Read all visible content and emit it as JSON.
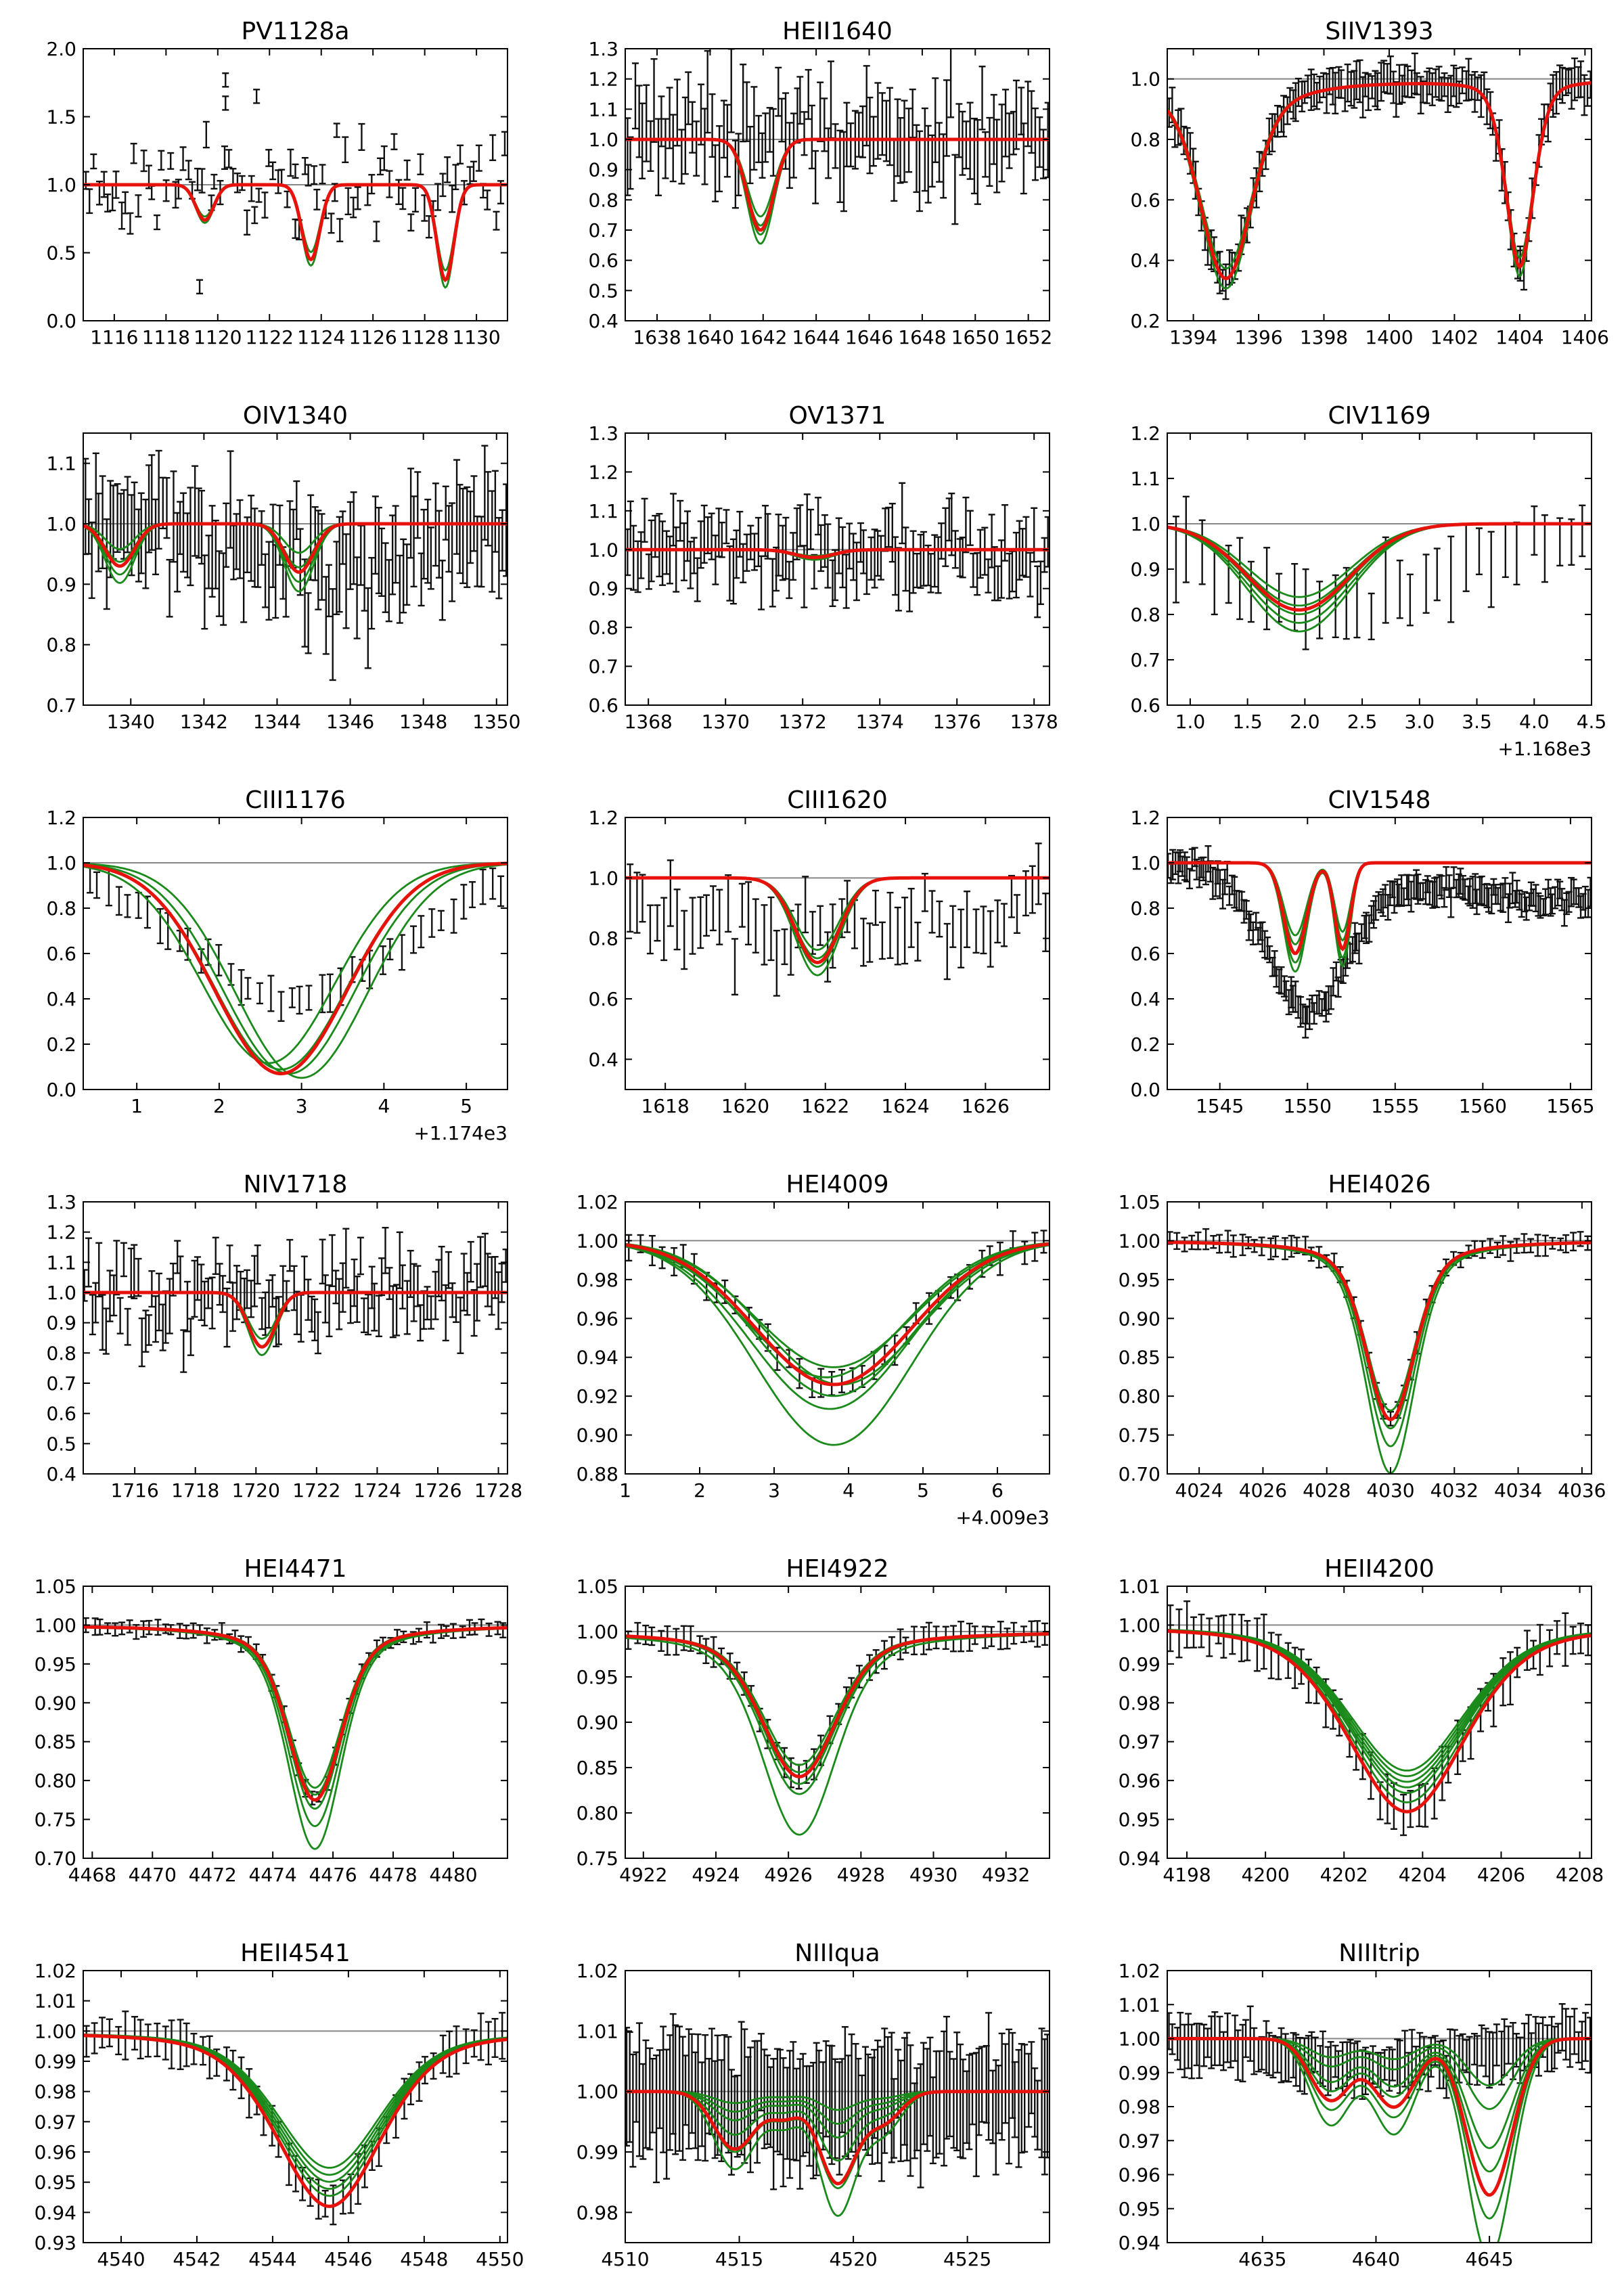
{
  "colors": {
    "model_best": "#e8120c",
    "model_samples": "#1a8a1a",
    "data": "#111111",
    "continuum": "#888888"
  },
  "chart_data": [
    {
      "type": "scatter",
      "title": "PV1128a",
      "xlim": [
        1114.8,
        1131.2
      ],
      "ylim": [
        0,
        2
      ],
      "xticks": [
        1116,
        1118,
        1120,
        1122,
        1124,
        1126,
        1128,
        1130
      ],
      "yticks": [
        0.0,
        0.5,
        1.0,
        1.5,
        2.0
      ],
      "ydec": 1,
      "noise": 0.35,
      "data_n": 95,
      "err": 0.07,
      "outliers": [
        [
          1119.3,
          0.25
        ],
        [
          1120.3,
          1.77
        ],
        [
          1120.3,
          1.6
        ],
        [
          1121.5,
          1.65
        ],
        [
          1123.0,
          1.1
        ],
        [
          1124.6,
          1.4
        ]
      ],
      "lines": [
        {
          "c": 1119.5,
          "d": 0.26,
          "w": 0.35
        },
        {
          "c": 1123.6,
          "d": 0.55,
          "w": 0.35
        },
        {
          "c": 1128.8,
          "d": 0.7,
          "w": 0.33
        }
      ],
      "green_scale": [
        0.9,
        1.0,
        1.08
      ]
    },
    {
      "type": "scatter",
      "title": "HEII1640",
      "xlim": [
        1636.8,
        1652.8
      ],
      "ylim": [
        0.4,
        1.3
      ],
      "xticks": [
        1638,
        1640,
        1642,
        1644,
        1646,
        1648,
        1650,
        1652
      ],
      "yticks": [
        0.4,
        0.5,
        0.6,
        0.7,
        0.8,
        0.9,
        1.0,
        1.1,
        1.2,
        1.3
      ],
      "ydec": 1,
      "noise": 0.15,
      "data_n": 110,
      "err": 0.1,
      "lines": [
        {
          "c": 1641.9,
          "d": 0.3,
          "w": 0.5
        }
      ],
      "green_scale": [
        0.85,
        0.95,
        1.05,
        1.15
      ]
    },
    {
      "type": "scatter",
      "title": "SIIV1393",
      "xlim": [
        1393.2,
        1406.2
      ],
      "ylim": [
        0.2,
        1.1
      ],
      "xticks": [
        1394,
        1396,
        1398,
        1400,
        1402,
        1404,
        1406
      ],
      "yticks": [
        0.2,
        0.4,
        0.6,
        0.8,
        1.0
      ],
      "ydec": 1,
      "noise": 0.04,
      "data_n": 140,
      "err": 0.05,
      "follow": true,
      "lines": [
        {
          "c": 1395.0,
          "d": 0.66,
          "w": 0.75,
          "lor": 1.6
        },
        {
          "c": 1404.0,
          "d": 0.62,
          "w": 0.45,
          "lor": 1.0
        }
      ],
      "green_scale": [
        0.95,
        1.0,
        1.05
      ]
    },
    {
      "type": "scatter",
      "title": "OIV1340",
      "xlim": [
        1338.7,
        1350.3
      ],
      "ylim": [
        0.7,
        1.15
      ],
      "xticks": [
        1340,
        1342,
        1344,
        1346,
        1348,
        1350
      ],
      "yticks": [
        0.7,
        0.8,
        0.9,
        1.0,
        1.1
      ],
      "ydec": 1,
      "noise": 0.08,
      "data_n": 120,
      "err": 0.06,
      "dip": {
        "c": 1345,
        "d": 0.08,
        "w": 2.5
      },
      "lines": [
        {
          "c": 1339.7,
          "d": 0.07,
          "w": 0.4
        },
        {
          "c": 1344.6,
          "d": 0.08,
          "w": 0.4
        }
      ],
      "green_scale": [
        0.6,
        0.9,
        1.2,
        1.4
      ]
    },
    {
      "type": "scatter",
      "title": "OV1371",
      "xlim": [
        1367.4,
        1378.4
      ],
      "ylim": [
        0.6,
        1.3
      ],
      "xticks": [
        1368,
        1370,
        1372,
        1374,
        1376,
        1378
      ],
      "yticks": [
        0.6,
        0.7,
        0.8,
        0.9,
        1.0,
        1.1,
        1.2,
        1.3
      ],
      "ydec": 1,
      "noise": 0.09,
      "data_n": 120,
      "err": 0.06,
      "lines": [
        {
          "c": 1372.3,
          "d": 0.02,
          "w": 0.5
        }
      ],
      "green_scale": [
        0.8,
        1.0,
        1.3
      ]
    },
    {
      "type": "scatter",
      "title": "CIV1169",
      "xlim": [
        0.8,
        4.5
      ],
      "ylim": [
        0.6,
        1.2
      ],
      "offset": "+1.168e3",
      "xticks": [
        1.0,
        1.5,
        2.0,
        2.5,
        3.0,
        3.5,
        4.0,
        4.5
      ],
      "xlabels": [
        "1.0",
        "1.5",
        "2.0",
        "2.5",
        "3.0",
        "3.5",
        "4.0",
        "4.5"
      ],
      "yticks": [
        0.6,
        0.7,
        0.8,
        0.9,
        1.0,
        1.1,
        1.2
      ],
      "ydec": 1,
      "noise": 0.05,
      "data_n": 32,
      "err": 0.07,
      "dip": {
        "c": 2.3,
        "d": 0.18,
        "w": 0.9
      },
      "lines": [
        {
          "c": 1.95,
          "d": 0.19,
          "w": 0.45
        }
      ],
      "green_scale": [
        0.85,
        0.95,
        1.05,
        1.15,
        1.25
      ]
    },
    {
      "type": "scatter",
      "title": "CIII1176",
      "xlim": [
        0.35,
        5.5
      ],
      "ylim": [
        0,
        1.2
      ],
      "offset": "+1.174e3",
      "xticks": [
        1,
        2,
        3,
        4,
        5
      ],
      "xlabels": [
        "1",
        "2",
        "3",
        "4",
        "5"
      ],
      "yticks": [
        0.0,
        0.2,
        0.4,
        0.6,
        0.8,
        1.0,
        1.2
      ],
      "ydec": 1,
      "noise": 0.04,
      "data_n": 42,
      "err": 0.06,
      "dip": {
        "c": 2.9,
        "d": 0.6,
        "w": 1.3
      },
      "lines": [
        {
          "c": 2.75,
          "d": 0.93,
          "w": 0.8
        }
      ],
      "green_scale": [
        0.95,
        0.98,
        1.0,
        1.02
      ],
      "green_shift": [
        -0.15,
        0,
        0.1,
        0.25
      ]
    },
    {
      "type": "scatter",
      "title": "CIII1620",
      "xlim": [
        1617,
        1627.6
      ],
      "ylim": [
        0.3,
        1.2
      ],
      "xticks": [
        1618,
        1620,
        1622,
        1624,
        1626
      ],
      "yticks": [
        0.4,
        0.6,
        0.8,
        1.0,
        1.2
      ],
      "ydec": 1,
      "noise": 0.12,
      "data_n": 60,
      "err": 0.08,
      "dip": {
        "c": 1622,
        "d": 0.2,
        "w": 4
      },
      "lines": [
        {
          "c": 1621.8,
          "d": 0.28,
          "w": 0.55
        }
      ],
      "green_scale": [
        0.85,
        0.95,
        1.05,
        1.15
      ]
    },
    {
      "type": "scatter",
      "title": "CIV1548",
      "xlim": [
        1542,
        1566.2
      ],
      "ylim": [
        0,
        1.2
      ],
      "xticks": [
        1545,
        1550,
        1555,
        1560,
        1565
      ],
      "yticks": [
        0.0,
        0.2,
        0.4,
        0.6,
        0.8,
        1.0,
        1.2
      ],
      "ydec": 1,
      "noise": 0.05,
      "data_n": 180,
      "err": 0.05,
      "dip": {
        "c": 1550,
        "d": 0.6,
        "w": 2.2
      },
      "tilt": 0.2,
      "lines": [
        {
          "c": 1549.3,
          "d": 0.4,
          "w": 0.65
        },
        {
          "c": 1552.0,
          "d": 0.38,
          "w": 0.45
        }
      ],
      "green_scale": [
        0.8,
        0.9,
        1.0,
        1.1,
        1.2
      ]
    },
    {
      "type": "scatter",
      "title": "NIV1718",
      "xlim": [
        1714.3,
        1728.3
      ],
      "ylim": [
        0.4,
        1.3
      ],
      "xticks": [
        1716,
        1718,
        1720,
        1722,
        1724,
        1726,
        1728
      ],
      "yticks": [
        0.4,
        0.5,
        0.6,
        0.7,
        0.8,
        0.9,
        1.0,
        1.1,
        1.2,
        1.3
      ],
      "ydec": 1,
      "noise": 0.15,
      "data_n": 120,
      "err": 0.07,
      "lines": [
        {
          "c": 1720.2,
          "d": 0.18,
          "w": 0.45
        }
      ],
      "green_scale": [
        0.85,
        1.0,
        1.15
      ]
    },
    {
      "type": "scatter",
      "title": "HEI4009",
      "xlim": [
        1,
        6.7
      ],
      "ylim": [
        0.88,
        1.02
      ],
      "offset": "+4.009e3",
      "xticks": [
        1,
        2,
        3,
        4,
        5,
        6
      ],
      "xlabels": [
        "1",
        "2",
        "3",
        "4",
        "5",
        "6"
      ],
      "yticks": [
        0.88,
        0.9,
        0.92,
        0.94,
        0.96,
        0.98,
        1.0,
        1.02
      ],
      "ydec": 2,
      "noise": 0.004,
      "data_n": 40,
      "err": 0.006,
      "follow": true,
      "lines": [
        {
          "c": 3.8,
          "d": 0.074,
          "w": 1.05
        }
      ],
      "green_scale": [
        0.88,
        0.95,
        1.0,
        1.08,
        1.17,
        1.42
      ],
      "green_shift": [
        0,
        -0.1,
        0.1,
        0,
        -0.05,
        0
      ]
    },
    {
      "type": "scatter",
      "title": "HEI4026",
      "xlim": [
        4023,
        4036.3
      ],
      "ylim": [
        0.7,
        1.05
      ],
      "xticks": [
        4024,
        4026,
        4028,
        4030,
        4032,
        4034,
        4036
      ],
      "yticks": [
        0.7,
        0.75,
        0.8,
        0.85,
        0.9,
        0.95,
        1.0,
        1.05
      ],
      "ydec": 2,
      "noise": 0.006,
      "data_n": 60,
      "err": 0.01,
      "follow": true,
      "lines": [
        {
          "c": 4030.0,
          "d": 0.23,
          "w": 0.75,
          "lor": 1.4
        }
      ],
      "green_scale": [
        0.95,
        1.0,
        1.05,
        1.15,
        1.3
      ]
    },
    {
      "type": "scatter",
      "title": "HEI4471",
      "xlim": [
        4467.7,
        4481.8
      ],
      "ylim": [
        0.7,
        1.05
      ],
      "xticks": [
        4468,
        4470,
        4472,
        4474,
        4476,
        4478,
        4480
      ],
      "yticks": [
        0.7,
        0.75,
        0.8,
        0.85,
        0.9,
        0.95,
        1.0,
        1.05
      ],
      "ydec": 2,
      "noise": 0.005,
      "data_n": 60,
      "err": 0.008,
      "follow": true,
      "lines": [
        {
          "c": 4475.4,
          "d": 0.225,
          "w": 0.85,
          "lor": 1.5
        }
      ],
      "green_scale": [
        0.93,
        0.97,
        1.0,
        1.05,
        1.15,
        1.28
      ]
    },
    {
      "type": "scatter",
      "title": "HEI4922",
      "xlim": [
        4921.5,
        4933.2
      ],
      "ylim": [
        0.75,
        1.05
      ],
      "xticks": [
        4922,
        4924,
        4926,
        4928,
        4930,
        4932
      ],
      "yticks": [
        0.75,
        0.8,
        0.85,
        0.9,
        0.95,
        1.0,
        1.05
      ],
      "ydec": 2,
      "noise": 0.005,
      "data_n": 55,
      "err": 0.012,
      "follow": true,
      "lines": [
        {
          "c": 4926.3,
          "d": 0.16,
          "w": 1.0,
          "lor": 1.4
        }
      ],
      "green_scale": [
        0.92,
        0.97,
        1.0,
        1.05,
        1.12,
        1.4
      ]
    },
    {
      "type": "scatter",
      "title": "HEII4200",
      "xlim": [
        4197.5,
        4208.3
      ],
      "ylim": [
        0.94,
        1.01
      ],
      "xticks": [
        4198,
        4200,
        4202,
        4204,
        4206,
        4208
      ],
      "yticks": [
        0.94,
        0.95,
        0.96,
        0.97,
        0.98,
        0.99,
        1.0,
        1.01
      ],
      "ydec": 2,
      "noise": 0.002,
      "data_n": 55,
      "err": 0.005,
      "follow": true,
      "lines": [
        {
          "c": 4203.6,
          "d": 0.048,
          "w": 1.5,
          "lor": 1.2
        }
      ],
      "green_scale": [
        0.78,
        0.81,
        0.84,
        0.87,
        0.9,
        0.95
      ],
      "red_skew": true
    },
    {
      "type": "scatter",
      "title": "HEII4541",
      "xlim": [
        4539,
        4550.2
      ],
      "ylim": [
        0.93,
        1.02
      ],
      "xticks": [
        4540,
        4542,
        4544,
        4546,
        4548,
        4550
      ],
      "yticks": [
        0.93,
        0.94,
        0.95,
        0.96,
        0.97,
        0.98,
        0.99,
        1.0,
        1.01,
        1.02
      ],
      "ydec": 2,
      "noise": 0.002,
      "data_n": 55,
      "err": 0.006,
      "follow": true,
      "lines": [
        {
          "c": 4545.5,
          "d": 0.058,
          "w": 1.4,
          "lor": 1.2
        }
      ],
      "green_scale": [
        0.78,
        0.82,
        0.86,
        0.9,
        0.94
      ]
    },
    {
      "type": "scatter",
      "title": "NIIIqua",
      "xlim": [
        4510,
        4528.6
      ],
      "ylim": [
        0.975,
        1.02
      ],
      "xticks": [
        4510,
        4515,
        4520,
        4525
      ],
      "yticks": [
        0.98,
        0.99,
        1.0,
        1.01,
        1.02
      ],
      "ydec": 2,
      "noise": 0.004,
      "data_n": 130,
      "err": 0.008,
      "dip": {
        "c": 4518,
        "d": 0.003,
        "w": 4
      },
      "lines": [
        {
          "c": 4514.8,
          "d": 0.0095,
          "w": 0.9
        },
        {
          "c": 4517.0,
          "d": 0.004,
          "w": 0.7
        },
        {
          "c": 4519.3,
          "d": 0.015,
          "w": 0.8
        },
        {
          "c": 4521.3,
          "d": 0.005,
          "w": 0.8
        }
      ],
      "green_scale": [
        0.2,
        0.35,
        0.5,
        0.75,
        1.05,
        1.35
      ]
    },
    {
      "type": "scatter",
      "title": "NIIItrip",
      "xlim": [
        4630.8,
        4649.5
      ],
      "ylim": [
        0.94,
        1.02
      ],
      "xticks": [
        4635,
        4640,
        4645
      ],
      "yticks": [
        0.94,
        0.95,
        0.96,
        0.97,
        0.98,
        0.99,
        1.0,
        1.01,
        1.02
      ],
      "ydec": 2,
      "noise": 0.004,
      "data_n": 110,
      "err": 0.006,
      "dip": {
        "c": 4640,
        "d": 0.008,
        "w": 4
      },
      "lines": [
        {
          "c": 4638.0,
          "d": 0.018,
          "w": 0.9
        },
        {
          "c": 4640.8,
          "d": 0.02,
          "w": 0.95
        },
        {
          "c": 4645.0,
          "d": 0.046,
          "w": 1.0
        }
      ],
      "green_scale": [
        0.3,
        0.45,
        0.7,
        0.85,
        1.0,
        1.15,
        1.4
      ]
    }
  ]
}
